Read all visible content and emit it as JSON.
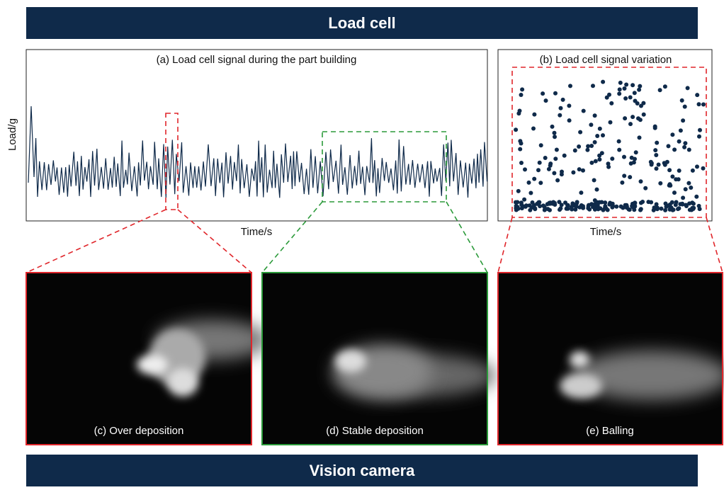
{
  "header": {
    "title": "Load cell"
  },
  "panels": [
    {
      "title": "(a) Load cell signal during the part building",
      "y_label": "Load/g",
      "x_label": "Time/s"
    },
    {
      "title": "(b) Load cell signal variation",
      "x_label": "Time/s"
    }
  ],
  "images": [
    {
      "label": "(c) Over deposition"
    },
    {
      "label": "(d) Stable deposition"
    },
    {
      "label": "(e) Balling"
    }
  ],
  "footer": {
    "title": "Vision camera"
  }
}
